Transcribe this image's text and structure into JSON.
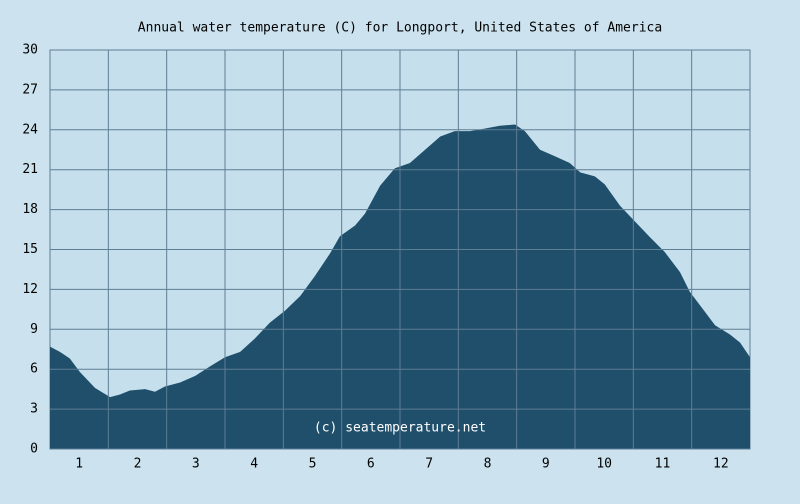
{
  "chart_data": {
    "type": "area",
    "title": "Annual water temperature (C) for Longport, United States of America",
    "annotation": "(c) seatemperature.net",
    "color": "#1f4f6b",
    "x": [
      0.5,
      0.67,
      0.84,
      1.01,
      1.27,
      1.53,
      1.7,
      1.87,
      2.13,
      2.3,
      2.47,
      2.73,
      2.99,
      3.24,
      3.5,
      3.76,
      4.01,
      4.27,
      4.53,
      4.79,
      5.04,
      5.3,
      5.47,
      5.73,
      5.9,
      6.16,
      6.41,
      6.67,
      6.93,
      7.19,
      7.44,
      7.7,
      7.96,
      8.21,
      8.47,
      8.64,
      8.9,
      9.16,
      9.41,
      9.59,
      9.84,
      10.01,
      10.27,
      10.53,
      10.79,
      11.04,
      11.3,
      11.47,
      11.73,
      11.9,
      12.16,
      12.33,
      12.5
    ],
    "values": [
      7.7,
      7.3,
      6.8,
      5.8,
      4.6,
      3.9,
      4.1,
      4.4,
      4.5,
      4.3,
      4.7,
      5.0,
      5.5,
      6.2,
      6.9,
      7.3,
      8.3,
      9.5,
      10.4,
      11.5,
      13.0,
      14.7,
      16.0,
      16.8,
      17.7,
      19.8,
      21.1,
      21.5,
      22.5,
      23.5,
      23.9,
      23.9,
      24.1,
      24.3,
      24.4,
      23.9,
      22.5,
      22.0,
      21.5,
      20.8,
      20.5,
      19.9,
      18.3,
      17.1,
      15.9,
      14.8,
      13.3,
      11.8,
      10.3,
      9.3,
      8.6,
      8.0,
      6.9
    ],
    "xlim": [
      0.5,
      12.5
    ],
    "xticks": [
      1,
      2,
      3,
      4,
      5,
      6,
      7,
      8,
      9,
      10,
      11,
      12
    ],
    "ylim": [
      0,
      30
    ],
    "yticks": [
      0,
      3,
      6,
      9,
      12,
      15,
      18,
      21,
      24,
      27,
      30
    ],
    "grid": true
  }
}
